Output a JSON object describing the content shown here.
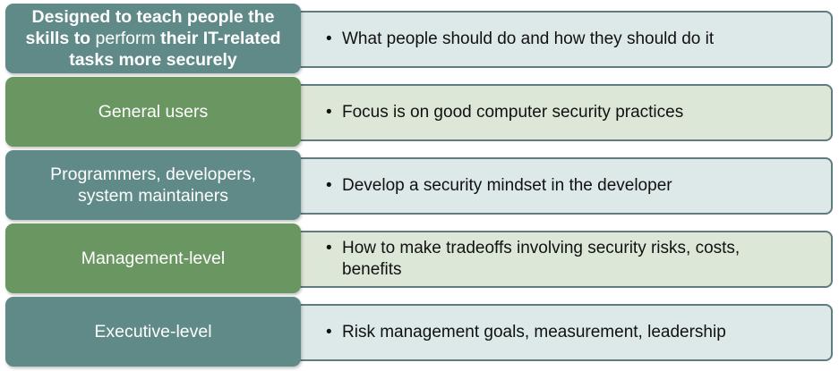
{
  "rows": [
    {
      "label_parts": [
        {
          "text": "Designed to teach people the skills to ",
          "bold": true
        },
        {
          "text": "perform",
          "bold": false
        },
        {
          "text": " their IT-related tasks more securely",
          "bold": true
        }
      ],
      "desc": "What people should do and how they should do it",
      "color": "#5f8a88"
    },
    {
      "label": "General users",
      "desc": "Focus is on good computer security practices",
      "color": "#6a9662"
    },
    {
      "label": "Programmers, developers, system maintainers",
      "desc": "Develop a security mindset in the developer",
      "color": "#5f8a88"
    },
    {
      "label": "Management-level",
      "desc": "How to make tradeoffs involving security risks, costs, benefits",
      "color": "#6a9662"
    },
    {
      "label": "Executive-level",
      "desc": "Risk management goals, measurement, leadership",
      "color": "#5f8a88"
    }
  ],
  "bullet_symbol": "•"
}
